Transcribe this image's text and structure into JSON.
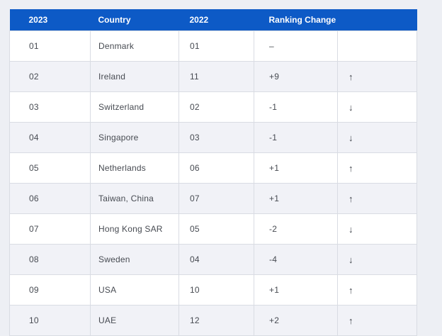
{
  "page": {
    "background_color": "#edeff4"
  },
  "table": {
    "header": {
      "bg_color": "#0d5ac6",
      "text_color": "#ffffff",
      "columns": [
        "2023",
        "Country",
        "2022",
        "Ranking Change",
        ""
      ]
    },
    "colors": {
      "row_bg": "#ffffff",
      "row_alt_bg": "#f1f2f7",
      "border": "#d9dce3",
      "body_text": "#474b52"
    },
    "rows": [
      {
        "rank_2023": "01",
        "country": "Denmark",
        "rank_2022": "01",
        "change": "–",
        "arrow": ""
      },
      {
        "rank_2023": "02",
        "country": "Ireland",
        "rank_2022": "11",
        "change": "+9",
        "arrow": "↑"
      },
      {
        "rank_2023": "03",
        "country": "Switzerland",
        "rank_2022": "02",
        "change": "-1",
        "arrow": "↓"
      },
      {
        "rank_2023": "04",
        "country": "Singapore",
        "rank_2022": "03",
        "change": "-1",
        "arrow": "↓"
      },
      {
        "rank_2023": "05",
        "country": "Netherlands",
        "rank_2022": "06",
        "change": "+1",
        "arrow": "↑"
      },
      {
        "rank_2023": "06",
        "country": "Taiwan, China",
        "rank_2022": "07",
        "change": "+1",
        "arrow": "↑"
      },
      {
        "rank_2023": "07",
        "country": "Hong Kong SAR",
        "rank_2022": "05",
        "change": "-2",
        "arrow": "↓"
      },
      {
        "rank_2023": "08",
        "country": "Sweden",
        "rank_2022": "04",
        "change": "-4",
        "arrow": "↓"
      },
      {
        "rank_2023": "09",
        "country": "USA",
        "rank_2022": "10",
        "change": "+1",
        "arrow": "↑"
      },
      {
        "rank_2023": "10",
        "country": "UAE",
        "rank_2022": "12",
        "change": "+2",
        "arrow": "↑"
      }
    ]
  },
  "chart_data": {
    "type": "table",
    "title": "",
    "columns": [
      "2023",
      "Country",
      "2022",
      "Ranking Change",
      ""
    ],
    "rows": [
      [
        "01",
        "Denmark",
        "01",
        "–",
        ""
      ],
      [
        "02",
        "Ireland",
        "11",
        "+9",
        "↑"
      ],
      [
        "03",
        "Switzerland",
        "02",
        "-1",
        "↓"
      ],
      [
        "04",
        "Singapore",
        "03",
        "-1",
        "↓"
      ],
      [
        "05",
        "Netherlands",
        "06",
        "+1",
        "↑"
      ],
      [
        "06",
        "Taiwan, China",
        "07",
        "+1",
        "↑"
      ],
      [
        "07",
        "Hong Kong SAR",
        "05",
        "-2",
        "↓"
      ],
      [
        "08",
        "Sweden",
        "04",
        "-4",
        "↓"
      ],
      [
        "09",
        "USA",
        "10",
        "+1",
        "↑"
      ],
      [
        "10",
        "UAE",
        "12",
        "+2",
        "↑"
      ]
    ]
  }
}
